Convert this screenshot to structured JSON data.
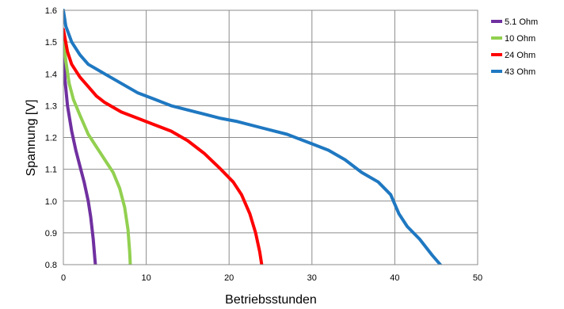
{
  "chart_data": {
    "type": "line",
    "xlabel": "Betriebsstunden",
    "ylabel": "Spannung [V]",
    "xlim": [
      0,
      50
    ],
    "ylim": [
      0.8,
      1.6
    ],
    "x_ticks": [
      0,
      10,
      20,
      30,
      40,
      50
    ],
    "y_ticks": [
      0.8,
      0.9,
      1.0,
      1.1,
      1.2,
      1.3,
      1.4,
      1.5,
      1.6
    ],
    "x_tick_labels": [
      "0",
      "10",
      "20",
      "30",
      "40",
      "50"
    ],
    "y_tick_labels": [
      "0.8",
      "0.9",
      "1.0",
      "1.1",
      "1.2",
      "1.3",
      "1.4",
      "1.5",
      "1.6"
    ],
    "grid": true,
    "legend_position": "right",
    "series": [
      {
        "name": "5.1 Ohm",
        "color": "#7030a0",
        "points": [
          [
            0,
            1.47
          ],
          [
            0.2,
            1.38
          ],
          [
            0.5,
            1.3
          ],
          [
            1.0,
            1.22
          ],
          [
            1.5,
            1.16
          ],
          [
            2.0,
            1.11
          ],
          [
            2.5,
            1.06
          ],
          [
            3.0,
            1.0
          ],
          [
            3.3,
            0.95
          ],
          [
            3.6,
            0.88
          ],
          [
            3.8,
            0.82
          ],
          [
            3.9,
            0.79
          ]
        ]
      },
      {
        "name": "10 Ohm",
        "color": "#92d050",
        "points": [
          [
            0,
            1.52
          ],
          [
            0.3,
            1.44
          ],
          [
            0.7,
            1.37
          ],
          [
            1.2,
            1.32
          ],
          [
            2.0,
            1.27
          ],
          [
            3.0,
            1.21
          ],
          [
            4.0,
            1.17
          ],
          [
            5.0,
            1.13
          ],
          [
            6.0,
            1.09
          ],
          [
            6.8,
            1.04
          ],
          [
            7.4,
            0.98
          ],
          [
            7.8,
            0.91
          ],
          [
            8.0,
            0.84
          ],
          [
            8.1,
            0.79
          ]
        ]
      },
      {
        "name": "24 Ohm",
        "color": "#ff0000",
        "points": [
          [
            0,
            1.54
          ],
          [
            0.5,
            1.47
          ],
          [
            1.0,
            1.43
          ],
          [
            2.0,
            1.39
          ],
          [
            3.0,
            1.36
          ],
          [
            4.0,
            1.33
          ],
          [
            5.0,
            1.31
          ],
          [
            7.0,
            1.28
          ],
          [
            9.0,
            1.26
          ],
          [
            11.0,
            1.24
          ],
          [
            13.0,
            1.22
          ],
          [
            15.0,
            1.19
          ],
          [
            17.0,
            1.15
          ],
          [
            19.0,
            1.1
          ],
          [
            20.5,
            1.06
          ],
          [
            21.5,
            1.02
          ],
          [
            22.5,
            0.96
          ],
          [
            23.2,
            0.9
          ],
          [
            23.7,
            0.84
          ],
          [
            24.0,
            0.79
          ]
        ]
      },
      {
        "name": "43 Ohm",
        "color": "#1f78c1",
        "points": [
          [
            0,
            1.6
          ],
          [
            0.3,
            1.55
          ],
          [
            1.0,
            1.5
          ],
          [
            2.0,
            1.46
          ],
          [
            3.0,
            1.43
          ],
          [
            5.0,
            1.4
          ],
          [
            7.0,
            1.37
          ],
          [
            9.0,
            1.34
          ],
          [
            11.0,
            1.32
          ],
          [
            13.0,
            1.3
          ],
          [
            16.0,
            1.28
          ],
          [
            19.0,
            1.26
          ],
          [
            21.0,
            1.25
          ],
          [
            24.0,
            1.23
          ],
          [
            27.0,
            1.21
          ],
          [
            30.0,
            1.18
          ],
          [
            32.0,
            1.16
          ],
          [
            34.0,
            1.13
          ],
          [
            36.0,
            1.09
          ],
          [
            38.0,
            1.06
          ],
          [
            39.5,
            1.02
          ],
          [
            40.5,
            0.96
          ],
          [
            41.5,
            0.92
          ],
          [
            43.0,
            0.88
          ],
          [
            44.5,
            0.83
          ],
          [
            45.5,
            0.8
          ]
        ]
      }
    ]
  }
}
